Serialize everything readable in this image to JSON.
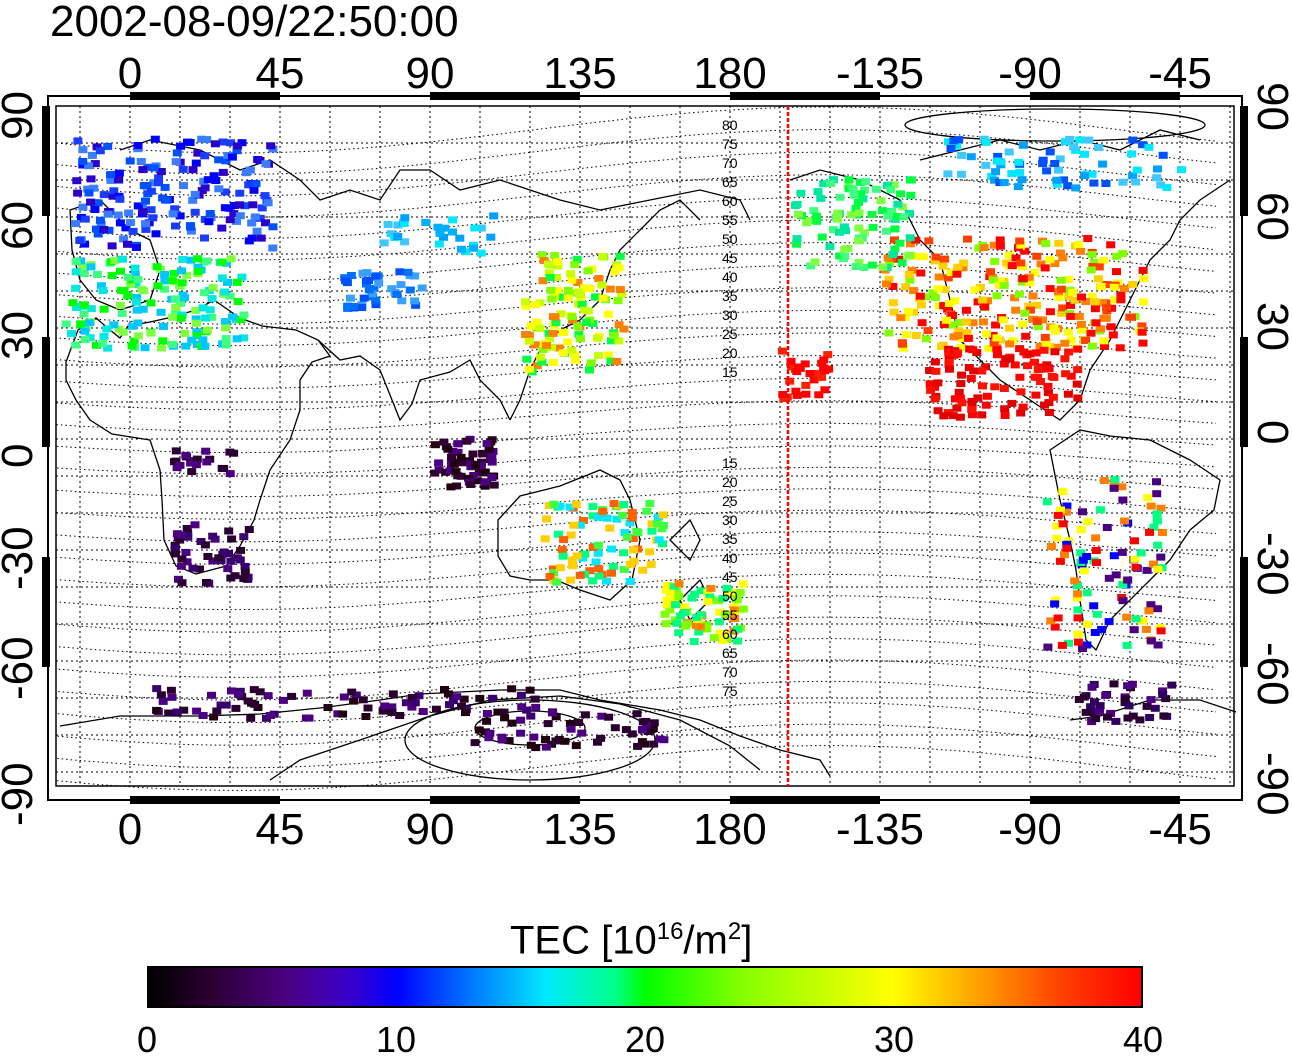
{
  "timestamp": "2002-08-09/22:50:00",
  "top_axis_labels": [
    "0",
    "45",
    "90",
    "135",
    "180",
    "-135",
    "-90",
    "-45"
  ],
  "bottom_axis_labels": [
    "0",
    "45",
    "90",
    "135",
    "180",
    "-135",
    "-90",
    "-45"
  ],
  "left_axis_labels": [
    "90",
    "60",
    "30",
    "0",
    "-30",
    "-60",
    "-90"
  ],
  "right_axis_labels": [
    "90",
    "60",
    "30",
    "0",
    "-30",
    "-60",
    "-90"
  ],
  "magnetic_lat_labels_north": [
    "80",
    "75",
    "70",
    "65",
    "60",
    "55",
    "50",
    "45",
    "40",
    "35",
    "30",
    "25",
    "20",
    "15"
  ],
  "magnetic_lat_labels_south": [
    "15",
    "20",
    "25",
    "30",
    "35",
    "40",
    "45",
    "50",
    "55",
    "60",
    "65",
    "70",
    "75"
  ],
  "colorbar": {
    "title_prefix": "TEC  [10",
    "title_exp1": "16",
    "title_mid": "/m",
    "title_exp2": "2",
    "title_suffix": "]",
    "tick_labels": [
      "0",
      "10",
      "20",
      "30",
      "40"
    ],
    "range": [
      0,
      40
    ]
  },
  "colors": {
    "terminator_line": "#ff0000",
    "frame": "#000000"
  }
}
